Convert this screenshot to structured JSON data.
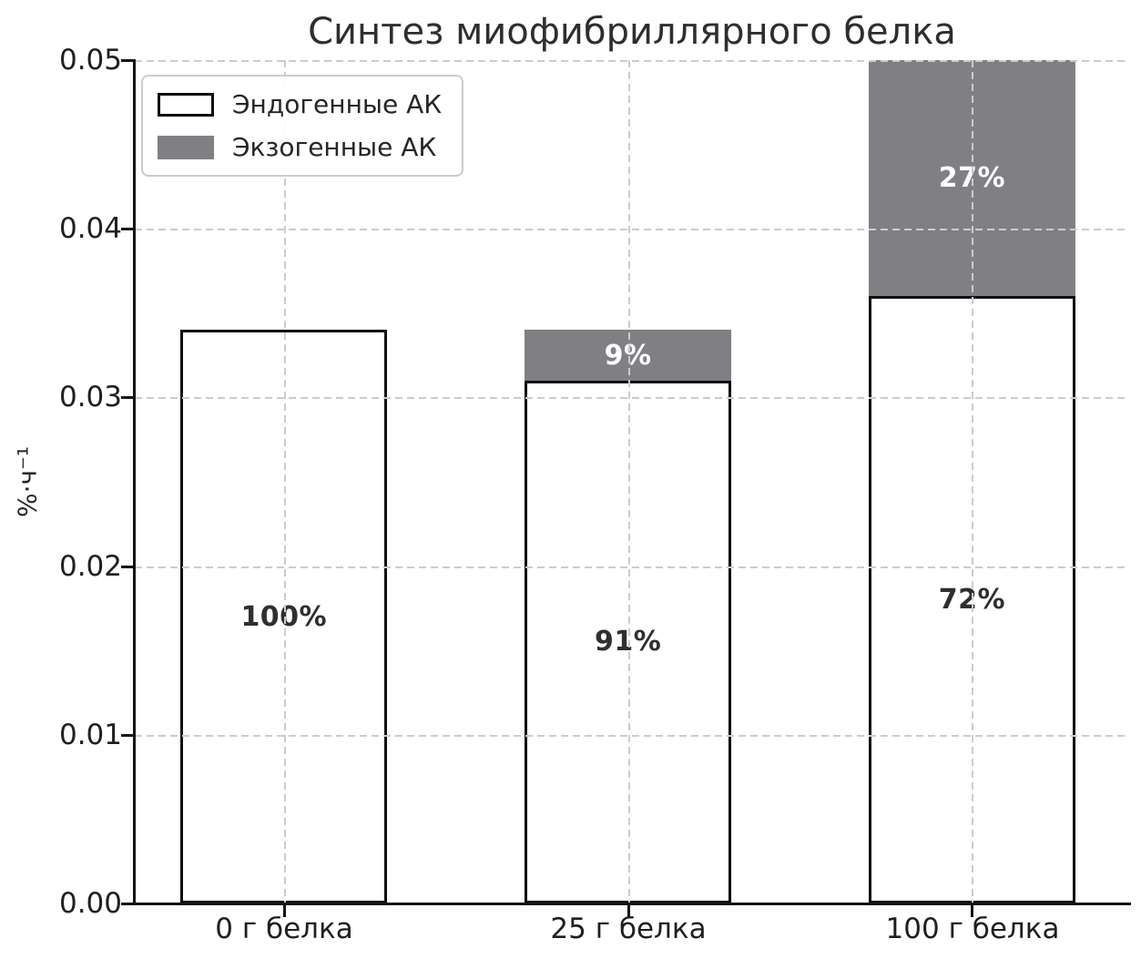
{
  "chart_data": {
    "type": "bar",
    "stacked": true,
    "title": "Синтез миофибриллярного белка",
    "categories": [
      "0 г белка",
      "25 г белка",
      "100 г белка"
    ],
    "series": [
      {
        "name": "Эндогенные АК",
        "color": "#ffffff",
        "edge_color": "#000000",
        "values": [
          0.034,
          0.031,
          0.036
        ],
        "bar_labels": [
          "100%",
          "91%",
          "72%"
        ]
      },
      {
        "name": "Экзогенные АК",
        "color": "#808084",
        "values": [
          0,
          0.003,
          0.014
        ],
        "bar_labels": [
          "",
          "9%",
          "27%"
        ]
      }
    ],
    "xlabel": "",
    "ylabel": "%·ч⁻¹",
    "ylim": [
      0,
      0.05
    ],
    "ytick_labels": [
      "0.00",
      "0.01",
      "0.02",
      "0.03",
      "0.04",
      "0.05"
    ],
    "grid": {
      "style": "dashed",
      "axes": "both",
      "color": "#cbcbd1",
      "drawn_over_bars": true
    },
    "legend": {
      "position": "upper-left"
    }
  },
  "colors": {
    "background": "#ffffff",
    "bar_fill_endogenous": "#ffffff",
    "bar_fill_exogenous": "#808084",
    "bar_edge": "#0d0d0d",
    "grid": "#cbcbd1",
    "text": "#262626",
    "bar_label_dark": "#2f2f2f",
    "bar_label_light": "#ffffff"
  }
}
